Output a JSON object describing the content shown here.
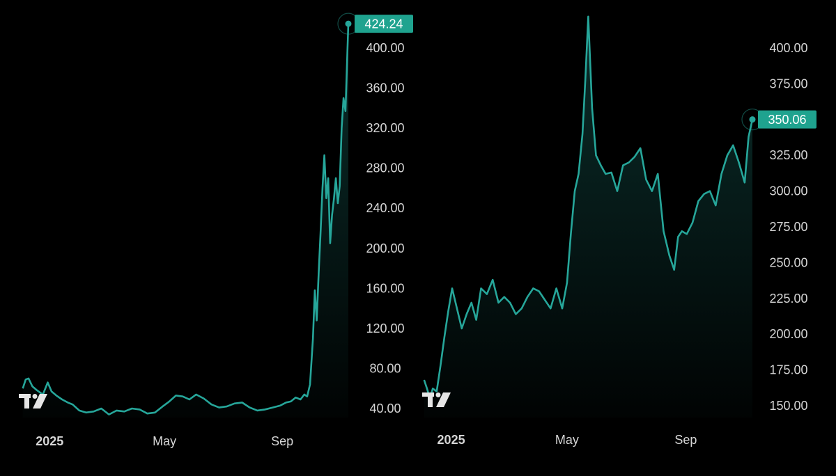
{
  "theme": {
    "background": "#000000",
    "line": "#26a69a",
    "label_bg": "#1fa38f",
    "text": "#d6d6d6"
  },
  "logo": {
    "text": "TV",
    "icon": "tradingview-logo-icon"
  },
  "chart_data": [
    {
      "type": "area",
      "title": "",
      "ylim": [
        30,
        428
      ],
      "yticks": [
        40,
        80,
        120,
        160,
        200,
        240,
        280,
        320,
        360,
        400
      ],
      "ytick_labels": [
        "40.00",
        "80.00",
        "120.00",
        "160.00",
        "200.00",
        "240.00",
        "280.00",
        "320.00",
        "360.00",
        "400.00"
      ],
      "xlim": [
        "2024-12-02",
        "2025-11-25"
      ],
      "xticks": [
        {
          "label": "2025",
          "date": "2025-01-01",
          "bold": true
        },
        {
          "label": "May",
          "date": "2025-05-01",
          "bold": false
        },
        {
          "label": "Sep",
          "date": "2025-09-01",
          "bold": false
        }
      ],
      "last_value": 424.24,
      "last_value_label": "424.24",
      "series": [
        {
          "x": [
            "2024-12-04",
            "2024-12-07",
            "2024-12-10",
            "2024-12-14",
            "2024-12-19",
            "2024-12-25",
            "2024-12-30",
            "2025-01-03",
            "2025-01-08",
            "2025-01-14",
            "2025-01-20",
            "2025-01-25",
            "2025-02-01",
            "2025-02-08",
            "2025-02-16",
            "2025-02-24",
            "2025-03-04",
            "2025-03-12",
            "2025-03-20",
            "2025-03-28",
            "2025-04-05",
            "2025-04-13",
            "2025-04-21",
            "2025-04-29",
            "2025-05-06",
            "2025-05-13",
            "2025-05-20",
            "2025-05-27",
            "2025-06-03",
            "2025-06-11",
            "2025-06-19",
            "2025-06-27",
            "2025-07-05",
            "2025-07-13",
            "2025-07-21",
            "2025-07-29",
            "2025-08-06",
            "2025-08-14",
            "2025-08-22",
            "2025-08-30",
            "2025-09-05",
            "2025-09-10",
            "2025-09-15",
            "2025-09-20",
            "2025-09-24",
            "2025-09-27",
            "2025-09-30",
            "2025-10-03",
            "2025-10-05",
            "2025-10-07",
            "2025-10-09",
            "2025-10-11",
            "2025-10-13",
            "2025-10-15",
            "2025-10-17",
            "2025-10-19",
            "2025-10-21",
            "2025-10-23",
            "2025-10-25",
            "2025-10-27",
            "2025-10-29",
            "2025-10-31",
            "2025-11-02",
            "2025-11-04",
            "2025-11-06",
            "2025-11-08",
            "2025-11-09"
          ],
          "y": [
            60,
            69,
            70,
            62,
            58,
            54,
            66,
            57,
            53,
            49,
            46,
            44,
            38,
            36,
            37,
            40,
            34,
            38,
            37,
            40,
            39,
            35,
            36,
            42,
            47,
            53,
            52,
            49,
            54,
            50,
            44,
            41,
            42,
            45,
            46,
            41,
            38,
            39,
            41,
            43,
            46,
            47,
            51,
            49,
            54,
            52,
            64,
            110,
            158,
            128,
            175,
            215,
            260,
            293,
            250,
            270,
            205,
            233,
            250,
            270,
            245,
            262,
            320,
            350,
            337,
            395,
            424.24
          ]
        }
      ]
    },
    {
      "type": "area",
      "title": "",
      "ylim": [
        145,
        420
      ],
      "yticks": [
        150,
        175,
        200,
        225,
        250,
        275,
        300,
        325,
        350,
        375,
        400
      ],
      "ytick_labels": [
        "150.00",
        "175.00",
        "200.00",
        "225.00",
        "250.00",
        "275.00",
        "300.00",
        "325.00",
        "350.00",
        "375.00",
        "400.00"
      ],
      "xlim": [
        "2024-12-02",
        "2025-11-25"
      ],
      "xticks": [
        {
          "label": "2025",
          "date": "2025-01-01",
          "bold": true
        },
        {
          "label": "May",
          "date": "2025-05-01",
          "bold": false
        },
        {
          "label": "Sep",
          "date": "2025-09-01",
          "bold": false
        }
      ],
      "last_value": 350.06,
      "last_value_label": "350.06",
      "series": [
        {
          "x": [
            "2024-12-04",
            "2024-12-07",
            "2024-12-10",
            "2024-12-13",
            "2024-12-17",
            "2024-12-21",
            "2024-12-25",
            "2024-12-29",
            "2025-01-02",
            "2025-01-07",
            "2025-01-12",
            "2025-01-17",
            "2025-01-22",
            "2025-01-27",
            "2025-02-01",
            "2025-02-07",
            "2025-02-13",
            "2025-02-19",
            "2025-02-25",
            "2025-03-03",
            "2025-03-09",
            "2025-03-15",
            "2025-03-21",
            "2025-03-27",
            "2025-04-02",
            "2025-04-08",
            "2025-04-14",
            "2025-04-20",
            "2025-04-26",
            "2025-05-01",
            "2025-05-05",
            "2025-05-09",
            "2025-05-13",
            "2025-05-17",
            "2025-05-20",
            "2025-05-23",
            "2025-05-27",
            "2025-05-31",
            "2025-06-05",
            "2025-06-10",
            "2025-06-16",
            "2025-06-22",
            "2025-06-28",
            "2025-07-04",
            "2025-07-10",
            "2025-07-16",
            "2025-07-22",
            "2025-07-28",
            "2025-08-03",
            "2025-08-09",
            "2025-08-15",
            "2025-08-20",
            "2025-08-24",
            "2025-08-28",
            "2025-09-02",
            "2025-09-08",
            "2025-09-14",
            "2025-09-20",
            "2025-09-26",
            "2025-10-02",
            "2025-10-08",
            "2025-10-14",
            "2025-10-20",
            "2025-10-26",
            "2025-11-01",
            "2025-11-05",
            "2025-11-09"
          ],
          "y": [
            168,
            162,
            155,
            162,
            160,
            178,
            198,
            216,
            232,
            218,
            204,
            214,
            222,
            210,
            232,
            228,
            238,
            222,
            226,
            222,
            214,
            218,
            226,
            232,
            230,
            224,
            218,
            232,
            218,
            236,
            270,
            300,
            312,
            340,
            378,
            422,
            358,
            325,
            318,
            312,
            313,
            300,
            318,
            320,
            324,
            330,
            308,
            300,
            312,
            272,
            255,
            245,
            268,
            272,
            270,
            278,
            293,
            298,
            300,
            290,
            312,
            325,
            332,
            320,
            306,
            338,
            350.06
          ]
        }
      ]
    }
  ]
}
